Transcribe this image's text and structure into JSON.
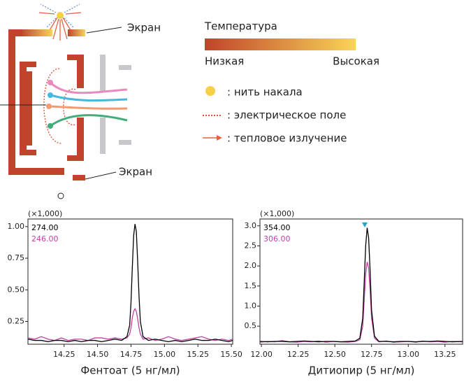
{
  "diagram": {
    "screen_top": "Экран",
    "screen_bottom": "Экран",
    "temperature_title": "Температура",
    "temperature_low": "Низкая",
    "temperature_high": "Высокая",
    "legend": [
      ": нить накала",
      ": электрическое поле",
      ": тепловое излучение"
    ]
  },
  "chart_data": [
    {
      "type": "line",
      "xlabel": "Фентоат (5 нг/мл)",
      "annotation": "(×1,000)",
      "x": [
        13.98,
        14.03,
        14.08,
        14.13,
        14.18,
        14.23,
        14.28,
        14.33,
        14.38,
        14.43,
        14.48,
        14.53,
        14.58,
        14.63,
        14.68,
        14.72,
        14.74,
        14.75,
        14.76,
        14.77,
        14.78,
        14.79,
        14.8,
        14.81,
        14.82,
        14.84,
        14.88,
        14.93,
        14.98,
        15.03,
        15.08,
        15.13,
        15.18,
        15.23,
        15.28,
        15.33,
        15.38,
        15.43,
        15.48,
        15.51
      ],
      "series": [
        {
          "name": "274.00",
          "color": "#000000",
          "values": [
            0.11,
            0.1,
            0.1,
            0.09,
            0.1,
            0.1,
            0.09,
            0.1,
            0.09,
            0.1,
            0.1,
            0.09,
            0.1,
            0.11,
            0.1,
            0.13,
            0.22,
            0.4,
            0.68,
            0.93,
            1.02,
            0.96,
            0.72,
            0.45,
            0.25,
            0.13,
            0.1,
            0.11,
            0.1,
            0.09,
            0.1,
            0.09,
            0.1,
            0.11,
            0.1,
            0.1,
            0.11,
            0.1,
            0.09,
            0.1
          ]
        },
        {
          "name": "246.00",
          "color": "#c040a8",
          "values": [
            0.12,
            0.11,
            0.13,
            0.11,
            0.1,
            0.12,
            0.1,
            0.11,
            0.11,
            0.1,
            0.12,
            0.12,
            0.11,
            0.12,
            0.11,
            0.12,
            0.15,
            0.2,
            0.28,
            0.33,
            0.35,
            0.33,
            0.27,
            0.2,
            0.15,
            0.11,
            0.12,
            0.1,
            0.11,
            0.13,
            0.11,
            0.1,
            0.11,
            0.12,
            0.13,
            0.11,
            0.1,
            0.11,
            0.1,
            0.11
          ]
        }
      ],
      "xlim": [
        13.98,
        15.51
      ],
      "ylim": [
        0.07,
        1.06
      ],
      "xticks": [
        14.25,
        {
          "value": 14.5,
          "label": "14.50"
        },
        14.75,
        {
          "value": 15,
          "label": "15.00"
        },
        15.25,
        {
          "value": 15.5,
          "label": "15.50"
        }
      ],
      "yticks": [
        0.25,
        {
          "value": 0.5,
          "label": "0.50"
        },
        0.75,
        {
          "value": 1,
          "label": "1.00"
        }
      ],
      "grid": false
    },
    {
      "type": "line",
      "xlabel": "Дитиопир (5 нг/мл)",
      "annotation": "(×1,000)",
      "x": [
        11.99,
        12.04,
        12.09,
        12.14,
        12.19,
        12.24,
        12.29,
        12.34,
        12.39,
        12.44,
        12.49,
        12.54,
        12.59,
        12.64,
        12.67,
        12.69,
        12.7,
        12.71,
        12.72,
        12.73,
        12.74,
        12.75,
        12.77,
        12.8,
        12.85,
        12.9,
        12.95,
        13.0,
        13.05,
        13.1,
        13.15,
        13.2,
        13.25,
        13.3,
        13.37
      ],
      "series": [
        {
          "name": "354.00",
          "color": "#000000",
          "values": [
            0.12,
            0.11,
            0.12,
            0.12,
            0.11,
            0.12,
            0.13,
            0.12,
            0.11,
            0.12,
            0.12,
            0.11,
            0.12,
            0.13,
            0.2,
            0.7,
            1.6,
            2.5,
            2.95,
            2.7,
            1.9,
            0.9,
            0.25,
            0.12,
            0.12,
            0.11,
            0.12,
            0.12,
            0.11,
            0.12,
            0.12,
            0.13,
            0.12,
            0.11,
            0.12
          ]
        },
        {
          "name": "306.00",
          "color": "#c040a8",
          "values": [
            0.1,
            0.12,
            0.11,
            0.14,
            0.11,
            0.1,
            0.12,
            0.11,
            0.13,
            0.1,
            0.12,
            0.11,
            0.1,
            0.12,
            0.16,
            0.5,
            1.15,
            1.8,
            2.1,
            1.95,
            1.4,
            0.7,
            0.2,
            0.11,
            0.13,
            0.1,
            0.11,
            0.12,
            0.1,
            0.13,
            0.11,
            0.12,
            0.1,
            0.12,
            0.11
          ]
        }
      ],
      "xlim": [
        11.99,
        13.37
      ],
      "ylim": [
        0.05,
        3.17
      ],
      "xticks": [
        {
          "value": 12,
          "label": "12.00"
        },
        12.25,
        {
          "value": 12.5,
          "label": "12.50"
        },
        12.75,
        {
          "value": 13,
          "label": "13.00"
        },
        13.25
      ],
      "yticks": [
        0.5,
        {
          "value": 1,
          "label": "1.0"
        },
        1.5,
        {
          "value": 2,
          "label": "2.0"
        },
        2.5,
        {
          "value": 3,
          "label": "3.0"
        }
      ],
      "grid": false
    }
  ]
}
